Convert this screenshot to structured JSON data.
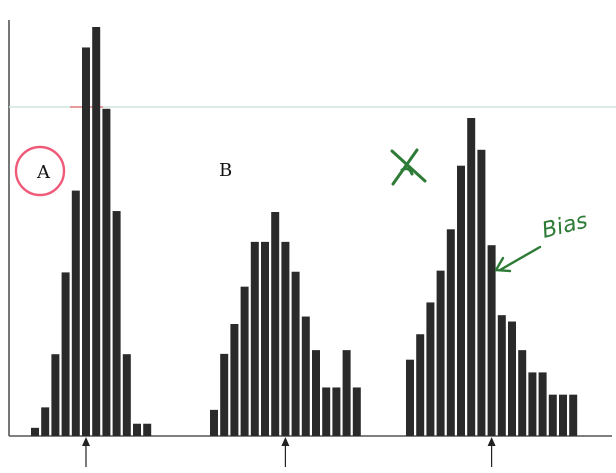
{
  "chart_data": [
    {
      "type": "bar",
      "label": "A",
      "values": [
        2,
        7,
        20,
        40,
        60,
        95,
        100,
        80,
        55,
        20,
        3,
        3
      ],
      "marked_index": 5,
      "annotation_circle": true
    },
    {
      "type": "bar",
      "label": "B",
      "values": [
        7,
        22,
        30,
        40,
        52,
        52,
        60,
        52,
        44,
        32,
        23,
        13,
        13,
        23,
        13
      ],
      "marked_index": 7
    },
    {
      "type": "bar",
      "label": "",
      "values": [
        24,
        32,
        42,
        52,
        65,
        85,
        100,
        90,
        60,
        38,
        36,
        27,
        20,
        20,
        13,
        13,
        13
      ],
      "marked_index": 8,
      "annotation": "Bias",
      "crossed_out": true
    }
  ],
  "page": {
    "background": "#ffffff",
    "bar_color": "#2a2a2a",
    "ink_color": "#2d7b36",
    "circle_color": "#ef5a78"
  }
}
